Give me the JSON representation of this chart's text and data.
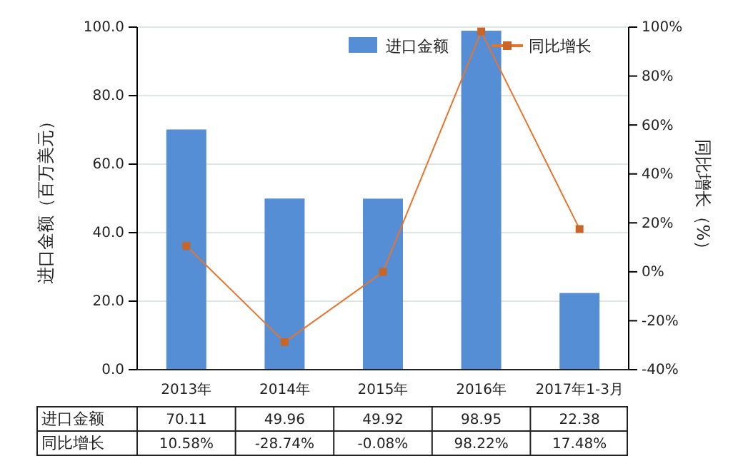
{
  "chart_data": {
    "type": "bar",
    "categories": [
      "2013年",
      "2014年",
      "2015年",
      "2016年",
      "2017年1-3月"
    ],
    "ylabel": "进口金额（百万美元）",
    "y2label": "同比增长（%）",
    "series": [
      {
        "name": "进口金额",
        "color": "#558ed5",
        "values": [
          70.11,
          49.96,
          49.92,
          98.95,
          22.38
        ],
        "value_labels": [
          "70.11",
          "49.96",
          "49.92",
          "98.95",
          "22.38"
        ]
      },
      {
        "name": "同比增长",
        "type": "line",
        "axis": "y2",
        "color": "#e8742c",
        "marker": "square",
        "values": [
          10.58,
          -28.74,
          -0.08,
          98.22,
          17.48
        ],
        "value_labels": [
          "10.58%",
          "-28.74%",
          "-0.08%",
          "98.22%",
          "17.48%"
        ]
      }
    ],
    "ylim": [
      0,
      100
    ],
    "yticks": [
      {
        "value": 0,
        "label": "0.0"
      },
      {
        "value": 20,
        "label": "20.0"
      },
      {
        "value": 40,
        "label": "40.0"
      },
      {
        "value": 60,
        "label": "60.0"
      },
      {
        "value": 80,
        "label": "80.0"
      },
      {
        "value": 100,
        "label": "100.0"
      }
    ],
    "y2lim": [
      -40,
      100
    ],
    "y2ticks": [
      {
        "value": -40,
        "label": "-40%"
      },
      {
        "value": -20,
        "label": "-20%"
      },
      {
        "value": 0,
        "label": "0%"
      },
      {
        "value": 20,
        "label": "20%"
      },
      {
        "value": 40,
        "label": "40%"
      },
      {
        "value": 60,
        "label": "60%"
      },
      {
        "value": 80,
        "label": "80%"
      },
      {
        "value": 100,
        "label": "100%"
      }
    ],
    "grid": "y",
    "legend": "top right"
  }
}
